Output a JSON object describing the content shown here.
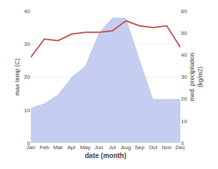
{
  "chart_data": {
    "type": "line",
    "categories": [
      "Jan",
      "Feb",
      "Mar",
      "Apr",
      "May",
      "Jun",
      "Jul",
      "Aug",
      "Sep",
      "Oct",
      "Nov",
      "Dec"
    ],
    "series": [
      {
        "type": "area",
        "axis": "y2",
        "color": "#c5cdf0",
        "values": [
          16,
          18,
          22,
          30,
          35,
          50,
          57,
          57,
          38,
          20,
          20,
          20
        ]
      },
      {
        "type": "line",
        "color": "#c0504d",
        "values": [
          26,
          31.5,
          31,
          33,
          33.5,
          33.5,
          34,
          37,
          35.5,
          35,
          35.5,
          29
        ]
      }
    ],
    "xlabel": "date (month)",
    "ylabel": "max temp (C)",
    "y2label": "med. precipitation\n(kg/m2)",
    "ylim": [
      0,
      40
    ],
    "yticks": [
      0,
      10,
      20,
      30,
      40
    ],
    "y2lim": [
      0,
      60
    ],
    "y2ticks": [
      0,
      10,
      20,
      30,
      40,
      50,
      60
    ],
    "grid": true
  }
}
